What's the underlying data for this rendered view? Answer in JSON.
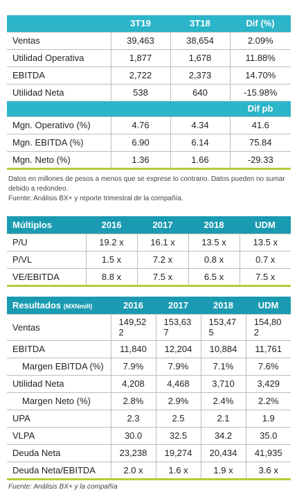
{
  "table1": {
    "headers": [
      "",
      "3T19",
      "3T18",
      "Dif (%)"
    ],
    "rows": [
      [
        "Ventas",
        "39,463",
        "38,654",
        "2.09%"
      ],
      [
        "Utilidad Operativa",
        "1,877",
        "1,678",
        "11.88%"
      ],
      [
        "EBITDA",
        "2,722",
        "2,373",
        "14.70%"
      ],
      [
        "Utilidad Neta",
        "538",
        "640",
        "-15.98%"
      ]
    ],
    "sub_header": "Dif pb",
    "rows2": [
      [
        "Mgn. Operativo (%)",
        "4.76",
        "4.34",
        "41.6"
      ],
      [
        "Mgn. EBITDA (%)",
        "6.90",
        "6.14",
        "75.84"
      ],
      [
        "Mgn. Neto (%)",
        "1.36",
        "1.66",
        "-29.33"
      ]
    ]
  },
  "note": {
    "line1": "Datos en millones de pesos a menos que se exprese lo contrario. Datos pueden no sumar debido a redondeo.",
    "line2": "Fuente: Análisis BX+ y reporte trimestral de la compañía."
  },
  "table2": {
    "headers": [
      "Múltiplos",
      "2016",
      "2017",
      "2018",
      "UDM"
    ],
    "rows": [
      [
        "P/U",
        "19.2 x",
        "16.1 x",
        "13.5 x",
        "13.5 x"
      ],
      [
        "P/VL",
        "1.5 x",
        "7.2 x",
        "0.8 x",
        "0.7 x"
      ],
      [
        "VE/EBITDA",
        "8.8 x",
        "7.5 x",
        "6.5 x",
        "7.5 x"
      ]
    ]
  },
  "table3": {
    "header_label": "Resultados",
    "header_unit": "(MXNmill)",
    "headers": [
      "2016",
      "2017",
      "2018",
      "UDM"
    ],
    "rows": [
      [
        "Ventas",
        "149,522",
        "153,637",
        "153,475",
        "154,802"
      ],
      [
        "EBITDA",
        "11,840",
        "12,204",
        "10,884",
        "11,761"
      ],
      [
        "Margen EBITDA (%)",
        "7.9%",
        "7.9%",
        "7.1%",
        "7.6%"
      ],
      [
        "Utilidad Neta",
        "4,208",
        "4,468",
        "3,710",
        "3,429"
      ],
      [
        "Margen Neto (%)",
        "2.8%",
        "2.9%",
        "2.4%",
        "2.2%"
      ],
      [
        "UPA",
        "2.3",
        "2.5",
        "2.1",
        "1.9"
      ],
      [
        "VLPA",
        "30.0",
        "32.5",
        "34.2",
        "35.0"
      ],
      [
        "Deuda Neta",
        "23,238",
        "19,274",
        "20,434",
        "41,935"
      ],
      [
        "Deuda Neta/EBITDA",
        "2.0 x",
        "1.6 x",
        "1.9 x",
        "3.6 x"
      ]
    ]
  },
  "footer": "Fuente: Análisis BX+ y la compañía"
}
